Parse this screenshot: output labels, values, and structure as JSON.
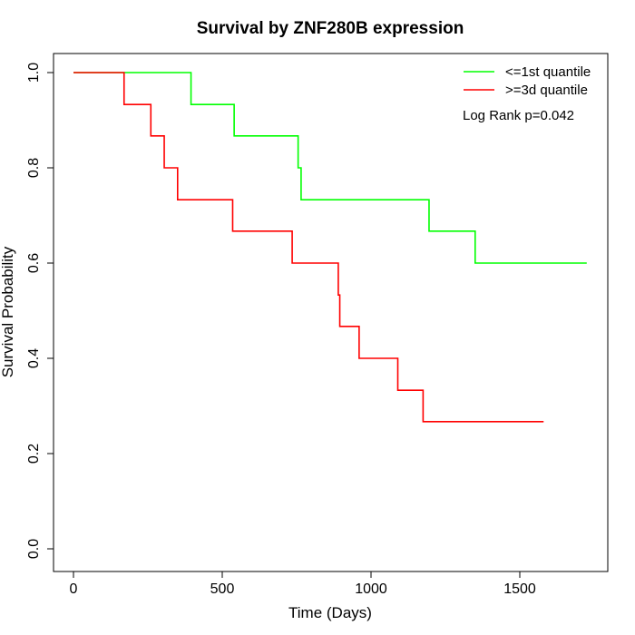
{
  "chart_data": {
    "type": "line",
    "title": "Survival by ZNF280B expression",
    "xlabel": "Time (Days)",
    "ylabel": "Survival Probability",
    "xlim": [
      0,
      1800
    ],
    "ylim": [
      0,
      1.0
    ],
    "xticks": [
      0,
      500,
      1000,
      1500
    ],
    "yticks": [
      0.0,
      0.2,
      0.4,
      0.6,
      0.8,
      1.0
    ],
    "xtick_labels": [
      "0",
      "500",
      "1000",
      "1500"
    ],
    "ytick_labels": [
      "0.0",
      "0.2",
      "0.4",
      "0.6",
      "0.8",
      "1.0"
    ],
    "grid": false,
    "legend_position": "top-right",
    "annotation": "Log Rank p=0.042",
    "series": [
      {
        "name": "<=1st quantile",
        "color": "#00ff00",
        "step": true,
        "x": [
          0,
          395,
          540,
          755,
          765,
          1195,
          1350,
          1725
        ],
        "y": [
          1.0,
          0.933,
          0.867,
          0.8,
          0.733,
          0.667,
          0.6,
          0.6
        ]
      },
      {
        "name": ">=3d quantile",
        "color": "#ff0000",
        "step": true,
        "x": [
          0,
          170,
          260,
          305,
          350,
          535,
          735,
          890,
          895,
          960,
          1090,
          1175,
          1580
        ],
        "y": [
          1.0,
          0.933,
          0.867,
          0.8,
          0.733,
          0.667,
          0.6,
          0.533,
          0.467,
          0.4,
          0.333,
          0.267,
          0.267
        ]
      }
    ]
  }
}
